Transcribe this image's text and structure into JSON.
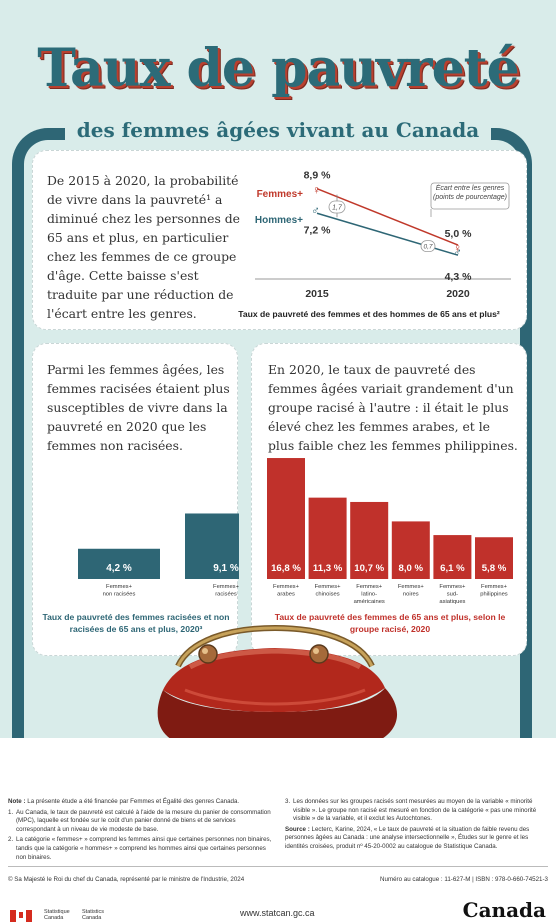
{
  "title": {
    "main": "Taux de pauvreté",
    "sub": "des femmes âgées vivant au Canada"
  },
  "panel1": {
    "text": "De 2015 à 2020, la probabilité de vivre dans la pauvreté¹ a diminué chez les personnes de 65 ans et plus, en particulier chez les femmes de ce groupe d'âge. Cette baisse s'est traduite par une réduction de l'écart entre les genres.",
    "chart_title": "Taux de pauvreté des femmes et des hommes de 65 ans et plus²"
  },
  "panel2": {
    "text": "Parmi les femmes âgées, les femmes racisées étaient plus susceptibles de vivre dans la pauvreté en 2020 que les femmes non racisées.",
    "chart_title": "Taux de pauvreté des femmes racisées et non racisées de 65 ans et plus, 2020³"
  },
  "panel3": {
    "text": "En 2020, le taux de pauvreté des femmes âgées variait grandement d'un groupe racisé à l'autre : il était le plus élevé chez les femmes arabes, et le plus faible chez les femmes philippines.",
    "chart_title": "Taux de pauvreté des femmes de 65 ans et plus, selon le groupe racisé, 2020"
  },
  "chart_data": [
    {
      "type": "line",
      "title": "Taux de pauvreté des femmes et des hommes de 65 ans et plus²",
      "x": [
        "2015",
        "2020"
      ],
      "series": [
        {
          "name": "Femmes+",
          "values": [
            8.9,
            5.0
          ],
          "labels": [
            "8,9 %",
            "5,0 %"
          ],
          "color": "#c0392b"
        },
        {
          "name": "Hommes+",
          "values": [
            7.2,
            4.3
          ],
          "labels": [
            "7,2 %",
            "4,3 %"
          ],
          "color": "#2e6675"
        }
      ],
      "gaps": [
        "1,7",
        "0,7"
      ],
      "gap_legend": "Écart entre les genres (points de pourcentage)"
    },
    {
      "type": "bar",
      "title": "Taux de pauvreté des femmes racisées et non racisées de 65 ans et plus, 2020³",
      "categories": [
        "Femmes+ non racisées",
        "Femmes+ racisées"
      ],
      "values": [
        4.2,
        9.1
      ],
      "labels": [
        "4,2 %",
        "9,1 %"
      ],
      "color": "#2e6675"
    },
    {
      "type": "bar",
      "title": "Taux de pauvreté des femmes de 65 ans et plus, selon le groupe racisé, 2020",
      "categories": [
        "Femmes+ arabes",
        "Femmes+ chinoises",
        "Femmes+ latino-américaines",
        "Femmes+ noires",
        "Femmes+ sud-asiatiques",
        "Femmes+ philippines"
      ],
      "values": [
        16.8,
        11.3,
        10.7,
        8.0,
        6.1,
        5.8
      ],
      "labels": [
        "16,8 %",
        "11,3 %",
        "10,7 %",
        "8,0 %",
        "6,1 %",
        "5,8 %"
      ],
      "color": "#c0312b"
    }
  ],
  "notes": {
    "note": "La présente étude a été financée par Femmes et Égalité des genres Canada.",
    "n1": "Au Canada, le taux de pauvreté est calculé à l'aide de la mesure du panier de consommation (MPC), laquelle est fondée sur le coût d'un panier donné de biens et de services correspondant à un niveau de vie modeste de base.",
    "n2": "La catégorie « femmes+ » comprend les femmes ainsi que certaines personnes non binaires, tandis que la catégorie « hommes+ » comprend les hommes ainsi que certaines personnes non binaires.",
    "n3": "Les données sur les groupes racisés sont mesurées au moyen de la variable « minorité visible ». Le groupe non racisé est mesuré en fonction de la catégorie « pas une minorité visible » de la variable, et il exclut les Autochtones.",
    "source_label": "Source :",
    "source": "Lecterc, Karine, 2024, « Le taux de pauvreté et la situation de faible revenu des personnes âgées au Canada : une analyse intersectionnelle », Études sur le genre et les identités croisées, produit nº 45-20-0002 au catalogue de Statistique Canada."
  },
  "footer": {
    "copyright": "© Sa Majesté le Roi du chef du Canada, représenté par le ministre de l'Industrie, 2024",
    "catalogue": "Numéro au catalogue : 11-627-M | ISBN : 978-0-660-74521-3",
    "agency_fr": "Statistique Canada",
    "agency_en": "Statistics Canada",
    "url": "www.statcan.gc.ca",
    "wordmark": "Canada"
  }
}
